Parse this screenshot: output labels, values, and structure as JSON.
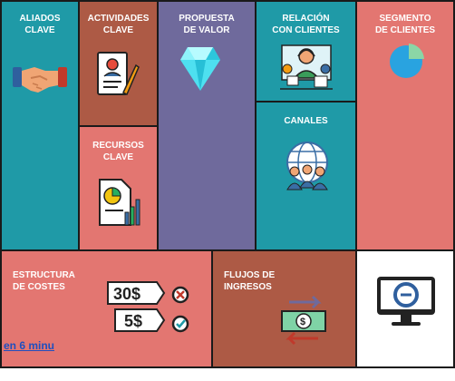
{
  "blocks": {
    "aliados": {
      "title": "ALIADOS\nCLAVE",
      "color": "#1f9aa7"
    },
    "actividades": {
      "title": "ACTIVIDADES\nCLAVE",
      "color": "#ad5a45"
    },
    "recursos": {
      "title": "RECURSOS\nCLAVE",
      "color": "#e37671"
    },
    "propuesta": {
      "title": "PROPUESTA\nDE VALOR",
      "color": "#6f6a9c"
    },
    "relacion": {
      "title": "RELACIÓN\nCON CLIENTES",
      "color": "#1f9aa7"
    },
    "canales": {
      "title": "CANALES",
      "color": "#1f9aa7"
    },
    "segmento": {
      "title": "SEGMENTO\nDE CLIENTES",
      "color": "#e37671"
    },
    "costes": {
      "title": "ESTRUCTURA\nDE COSTES",
      "color": "#e37671"
    },
    "ingresos": {
      "title": "FLUJOS DE\nINGRESOS",
      "color": "#ad5a45"
    }
  },
  "costes_icon": {
    "price_high": "30$",
    "price_low": "5$"
  },
  "link_text": "en 6 minu",
  "icons": [
    "handshake-icon",
    "contract-icon",
    "report-chart-icon",
    "diamond-icon",
    "customer-support-icon",
    "globe-people-icon",
    "pie-chart-icon",
    "price-tags-icon",
    "money-arrows-icon",
    "monitor-logo-icon"
  ]
}
